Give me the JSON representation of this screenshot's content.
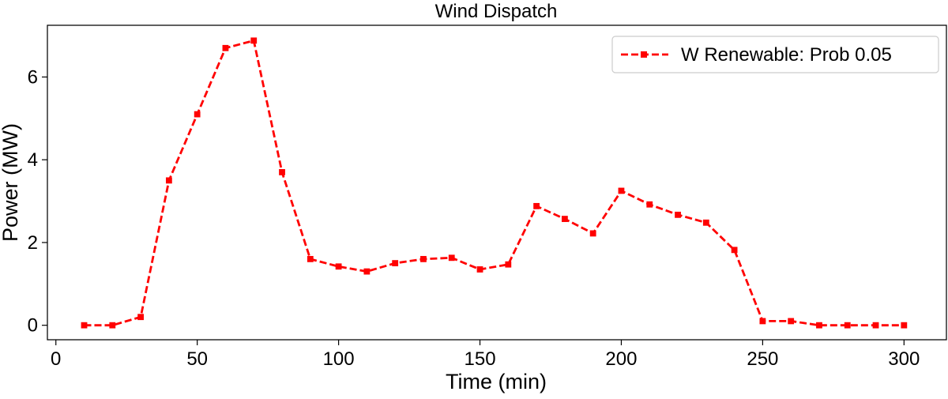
{
  "chart_data": {
    "type": "line",
    "title": "Wind Dispatch",
    "xlabel": "Time (min)",
    "ylabel": "Power (MW)",
    "xlim": [
      -3,
      315
    ],
    "ylim": [
      -0.35,
      7.25
    ],
    "xticks": [
      0,
      50,
      100,
      150,
      200,
      250,
      300
    ],
    "yticks": [
      0,
      2,
      4,
      6
    ],
    "grid": false,
    "legend": "top-right",
    "series": [
      {
        "name": "W Renewable: Prob 0.05",
        "color": "#ff0000",
        "line_style": "dashed",
        "marker": "square",
        "x": [
          10,
          20,
          30,
          40,
          50,
          60,
          70,
          80,
          90,
          100,
          110,
          120,
          130,
          140,
          150,
          160,
          170,
          180,
          190,
          200,
          210,
          220,
          230,
          240,
          250,
          260,
          270,
          280,
          290,
          300
        ],
        "y": [
          0.0,
          0.0,
          0.2,
          3.5,
          5.1,
          6.7,
          6.88,
          3.7,
          1.6,
          1.42,
          1.3,
          1.5,
          1.6,
          1.63,
          1.35,
          1.47,
          2.88,
          2.57,
          2.22,
          3.25,
          2.92,
          2.67,
          2.48,
          1.82,
          0.1,
          0.1,
          0.0,
          0.0,
          0.0,
          0.0
        ]
      }
    ]
  }
}
